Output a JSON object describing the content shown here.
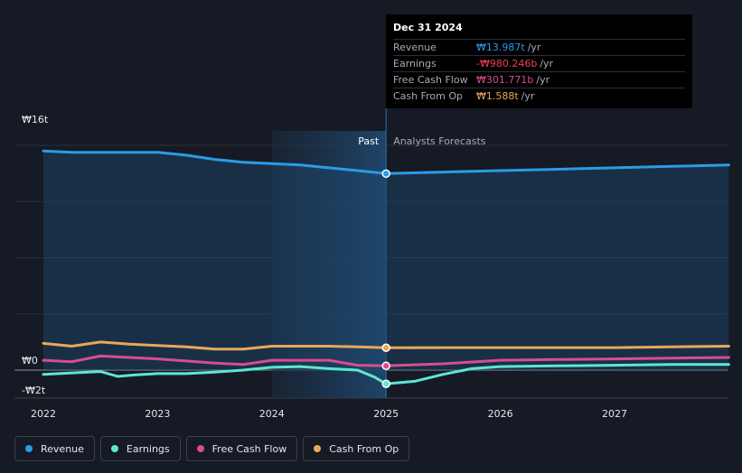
{
  "chart_data": {
    "type": "line",
    "x_ticks": [
      "2022",
      "2023",
      "2024",
      "2025",
      "2026",
      "2027"
    ],
    "y_tick_labels": [
      "₩16t",
      "₩0",
      "-₩2t"
    ],
    "ylim": [
      -2,
      16
    ],
    "unit": "t",
    "regions": {
      "past_label": "Past",
      "forecast_label": "Analysts Forecasts"
    },
    "series": [
      {
        "name": "Revenue",
        "color": "#2b9be8",
        "fill": true,
        "x": [
          2022.0,
          2022.25,
          2022.5,
          2022.75,
          2023.0,
          2023.25,
          2023.5,
          2023.75,
          2024.0,
          2024.25,
          2024.5,
          2024.75,
          2025.0,
          2025.5,
          2026.0,
          2026.5,
          2027.0,
          2027.5,
          2028.0
        ],
        "y": [
          15.6,
          15.5,
          15.5,
          15.5,
          15.5,
          15.3,
          15.0,
          14.8,
          14.7,
          14.6,
          14.4,
          14.2,
          13.987,
          14.1,
          14.2,
          14.3,
          14.4,
          14.5,
          14.6
        ]
      },
      {
        "name": "Earnings",
        "color": "#5ee6d0",
        "fill": false,
        "x": [
          2022.0,
          2022.25,
          2022.5,
          2022.65,
          2022.8,
          2023.0,
          2023.25,
          2023.5,
          2023.75,
          2024.0,
          2024.25,
          2024.5,
          2024.75,
          2024.9,
          2025.0,
          2025.25,
          2025.5,
          2025.75,
          2026.0,
          2026.5,
          2027.0,
          2027.5,
          2028.0
        ],
        "y": [
          -0.3,
          -0.2,
          -0.1,
          -0.45,
          -0.35,
          -0.25,
          -0.25,
          -0.15,
          0.0,
          0.2,
          0.25,
          0.1,
          0.0,
          -0.5,
          -0.98,
          -0.8,
          -0.3,
          0.1,
          0.25,
          0.3,
          0.35,
          0.4,
          0.4
        ]
      },
      {
        "name": "Free Cash Flow",
        "color": "#d94d8e",
        "fill": false,
        "x": [
          2022.0,
          2022.25,
          2022.5,
          2022.75,
          2023.0,
          2023.25,
          2023.5,
          2023.75,
          2024.0,
          2024.25,
          2024.5,
          2024.75,
          2025.0,
          2025.5,
          2026.0,
          2026.5,
          2027.0,
          2027.5,
          2028.0
        ],
        "y": [
          0.7,
          0.6,
          1.0,
          0.9,
          0.8,
          0.65,
          0.5,
          0.4,
          0.7,
          0.7,
          0.7,
          0.35,
          0.302,
          0.45,
          0.7,
          0.75,
          0.8,
          0.85,
          0.9
        ]
      },
      {
        "name": "Cash From Op",
        "color": "#e8a85a",
        "fill": false,
        "x": [
          2022.0,
          2022.25,
          2022.5,
          2022.75,
          2023.0,
          2023.25,
          2023.5,
          2023.75,
          2024.0,
          2024.25,
          2024.5,
          2024.75,
          2025.0,
          2025.5,
          2026.0,
          2026.5,
          2027.0,
          2027.5,
          2028.0
        ],
        "y": [
          1.9,
          1.7,
          2.0,
          1.85,
          1.75,
          1.65,
          1.5,
          1.5,
          1.7,
          1.7,
          1.7,
          1.65,
          1.588,
          1.6,
          1.6,
          1.6,
          1.6,
          1.65,
          1.7
        ]
      }
    ],
    "highlight_x": 2025.0,
    "past_shade_from": 2024.0
  },
  "tooltip": {
    "date": "Dec 31 2024",
    "rows": [
      {
        "label": "Revenue",
        "value": "₩13.987t",
        "unit": "/yr",
        "color": "#2b9be8"
      },
      {
        "label": "Earnings",
        "value": "-₩980.246b",
        "unit": "/yr",
        "color": "#e8434f"
      },
      {
        "label": "Free Cash Flow",
        "value": "₩301.771b",
        "unit": "/yr",
        "color": "#d94d8e"
      },
      {
        "label": "Cash From Op",
        "value": "₩1.588t",
        "unit": "/yr",
        "color": "#e8a85a"
      }
    ]
  },
  "legend": [
    {
      "label": "Revenue",
      "color": "#2b9be8"
    },
    {
      "label": "Earnings",
      "color": "#5ee6d0"
    },
    {
      "label": "Free Cash Flow",
      "color": "#d94d8e"
    },
    {
      "label": "Cash From Op",
      "color": "#e8a85a"
    }
  ]
}
